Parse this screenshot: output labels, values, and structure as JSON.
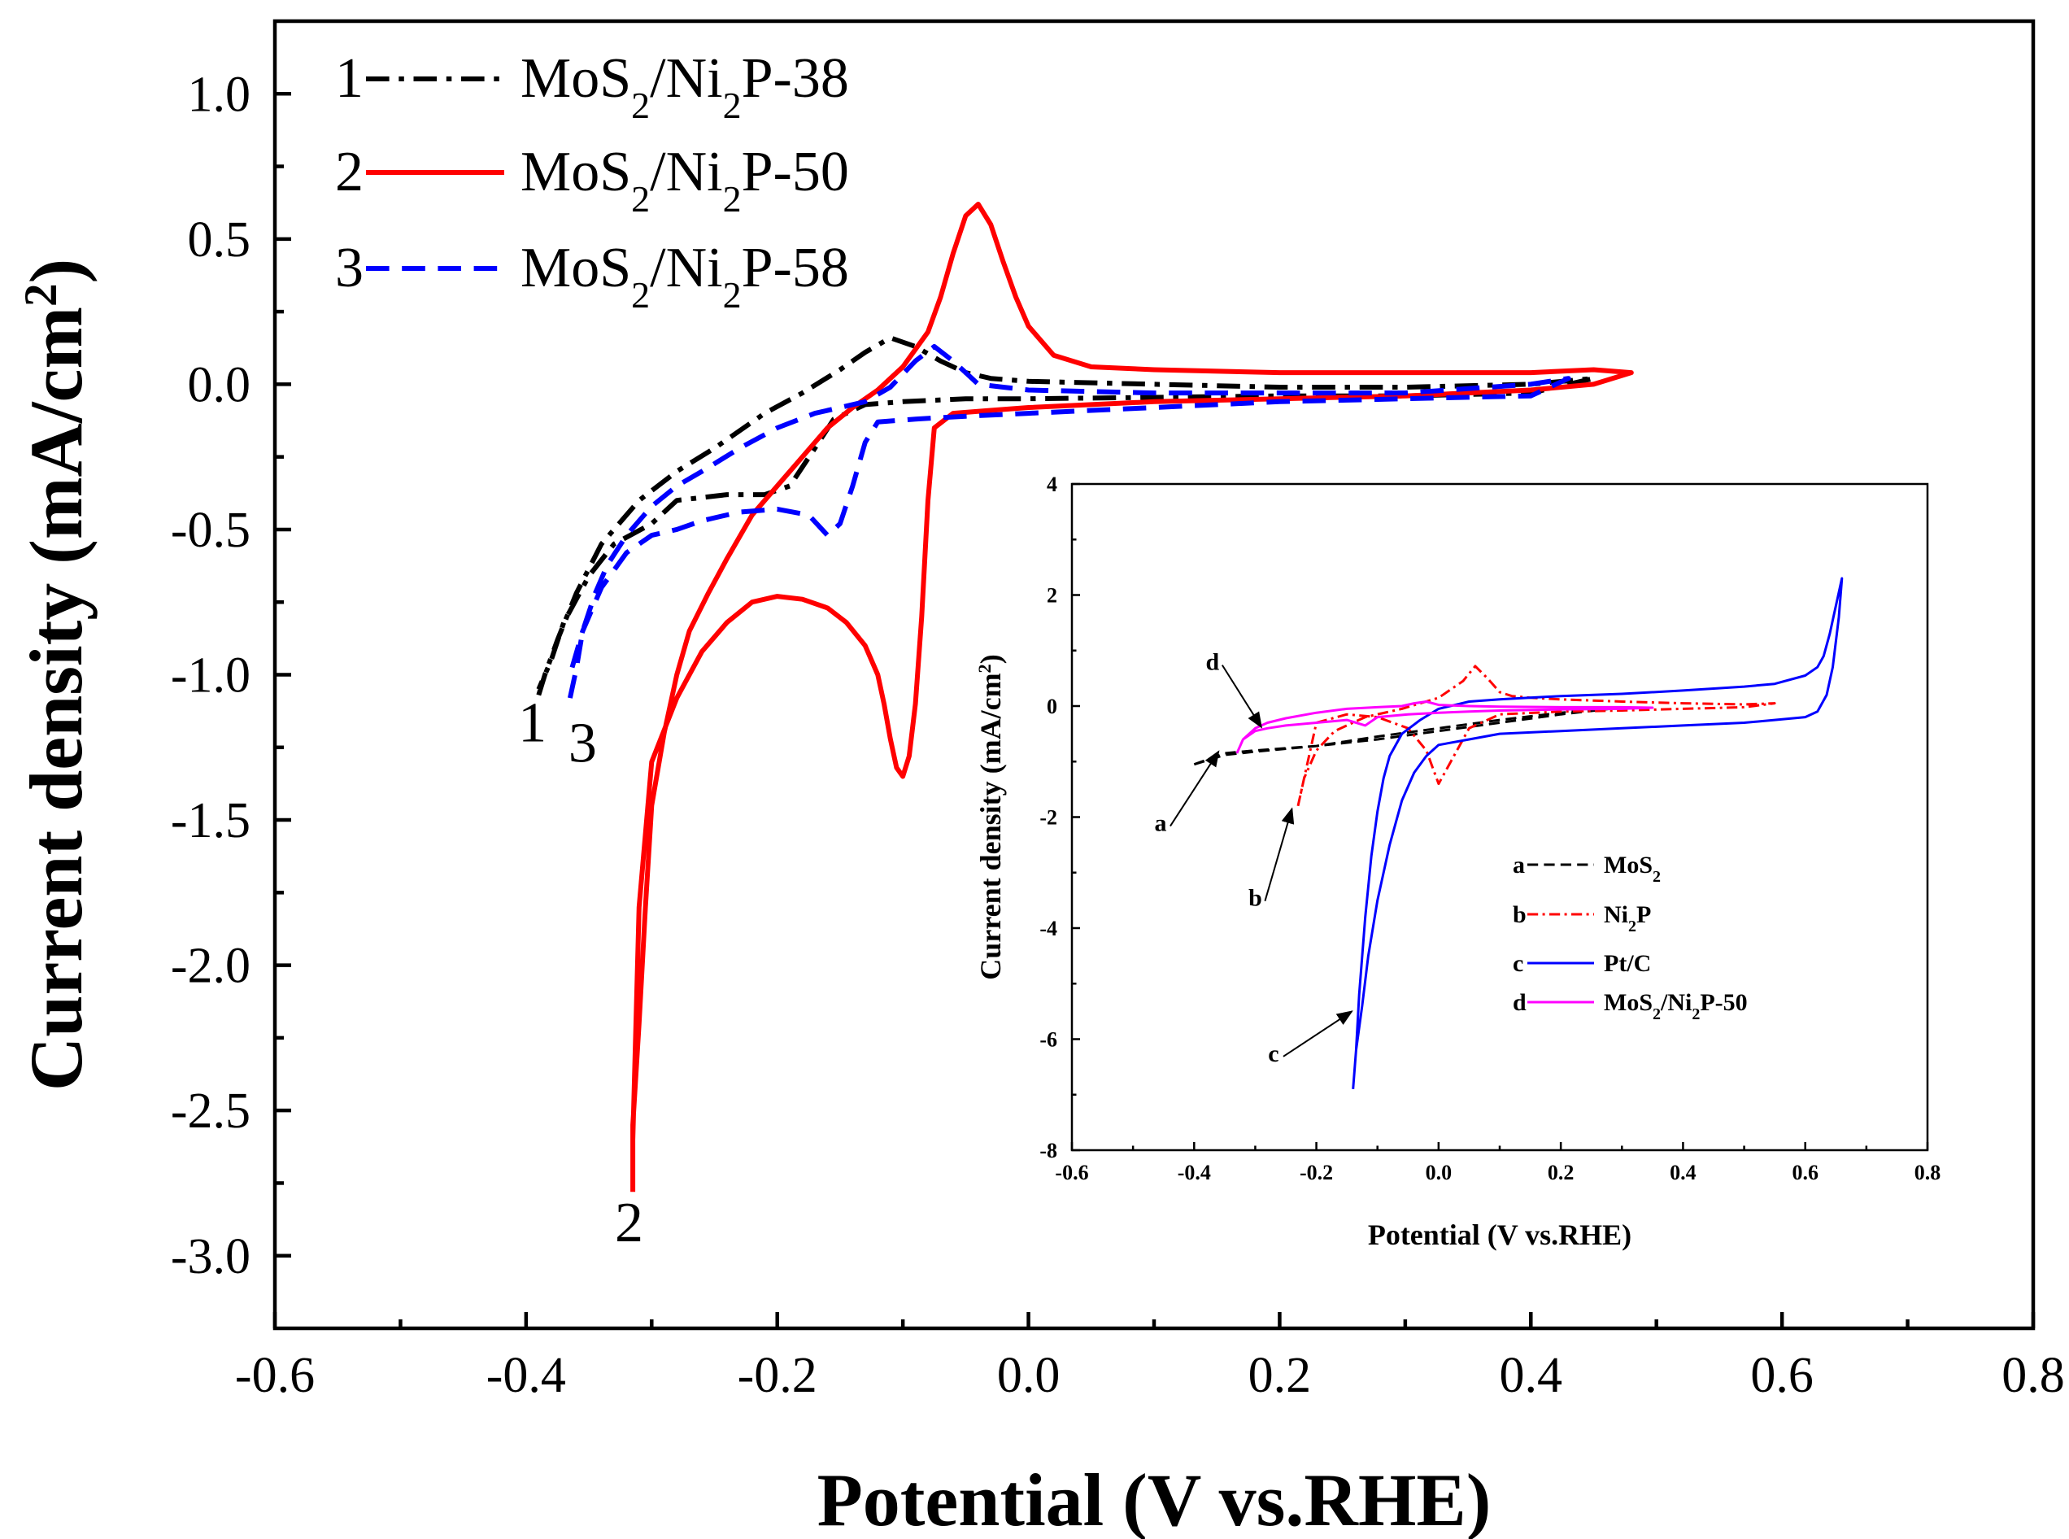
{
  "chart_data": [
    {
      "type": "line",
      "title": "",
      "xlabel": "Potential (V vs.RHE)",
      "ylabel": {
        "main": "Current density (mA/cm",
        "sup": "2",
        "end": ")"
      },
      "xlim": [
        -0.6,
        0.8
      ],
      "ylim": [
        -3.25,
        1.25
      ],
      "xticks": [
        -0.6,
        -0.4,
        -0.2,
        0.0,
        0.2,
        0.4,
        0.6,
        0.8
      ],
      "yticks": [
        1.0,
        0.5,
        0.0,
        -0.5,
        -1.0,
        -1.5,
        -2.0,
        -2.5,
        -3.0
      ],
      "xtick_labels": [
        "-0.6",
        "-0.4",
        "-0.2",
        "0.0",
        "0.2",
        "0.4",
        "0.6",
        "0.8"
      ],
      "ytick_labels": [
        "1.0",
        "0.5",
        "0.0",
        "-0.5",
        "-1.0",
        "-1.5",
        "-2.0",
        "-2.5",
        "-3.0"
      ],
      "grid": false,
      "legend_position": "top-left",
      "series": [
        {
          "id": "1",
          "num": "1",
          "label": {
            "main": "MoS",
            "s1": "2",
            "mid": "/Ni",
            "s2": "2",
            "end": "P-38"
          },
          "color": "#000000",
          "dash": "dashdot",
          "x": [
            -0.39,
            -0.385,
            -0.375,
            -0.36,
            -0.34,
            -0.31,
            -0.28,
            -0.25,
            -0.21,
            -0.18,
            -0.15,
            -0.13,
            -0.11,
            -0.09,
            -0.07,
            -0.05,
            -0.03,
            0.0,
            0.1,
            0.2,
            0.3,
            0.4,
            0.45,
            0.4,
            0.3,
            0.2,
            0.1,
            0.0,
            -0.05,
            -0.1,
            -0.13,
            -0.155,
            -0.17,
            -0.19,
            -0.21,
            -0.24,
            -0.28,
            -0.3,
            -0.33,
            -0.35,
            -0.37,
            -0.38,
            -0.39
          ],
          "y": [
            -1.07,
            -1.0,
            -0.88,
            -0.72,
            -0.55,
            -0.4,
            -0.3,
            -0.22,
            -0.1,
            -0.03,
            0.05,
            0.11,
            0.16,
            0.13,
            0.08,
            0.04,
            0.02,
            0.01,
            0.0,
            -0.01,
            -0.01,
            0.0,
            0.02,
            -0.03,
            -0.04,
            -0.04,
            -0.045,
            -0.05,
            -0.05,
            -0.06,
            -0.07,
            -0.12,
            -0.22,
            -0.35,
            -0.38,
            -0.38,
            -0.4,
            -0.48,
            -0.55,
            -0.66,
            -0.82,
            -0.95,
            -1.05
          ]
        },
        {
          "id": "2",
          "num": "2",
          "label": {
            "main": "MoS",
            "s1": "2",
            "mid": "/Ni",
            "s2": "2",
            "end": "P-50"
          },
          "color": "#ff0000",
          "dash": "solid",
          "x": [
            -0.315,
            -0.315,
            -0.31,
            -0.305,
            -0.3,
            -0.29,
            -0.28,
            -0.27,
            -0.255,
            -0.24,
            -0.22,
            -0.2,
            -0.18,
            -0.16,
            -0.14,
            -0.12,
            -0.1,
            -0.08,
            -0.07,
            -0.06,
            -0.05,
            -0.04,
            -0.03,
            -0.02,
            -0.01,
            0.0,
            0.02,
            0.05,
            0.1,
            0.2,
            0.3,
            0.4,
            0.45,
            0.48,
            0.45,
            0.4,
            0.3,
            0.2,
            0.1,
            0.0,
            -0.03,
            -0.06,
            -0.075,
            -0.08,
            -0.085,
            -0.09,
            -0.095,
            -0.1,
            -0.105,
            -0.11,
            -0.115,
            -0.12,
            -0.13,
            -0.145,
            -0.16,
            -0.18,
            -0.2,
            -0.22,
            -0.24,
            -0.26,
            -0.28,
            -0.3,
            -0.31,
            -0.315
          ],
          "y": [
            -2.78,
            -2.55,
            -2.2,
            -1.8,
            -1.45,
            -1.2,
            -1.0,
            -0.85,
            -0.72,
            -0.6,
            -0.45,
            -0.35,
            -0.25,
            -0.15,
            -0.08,
            -0.02,
            0.06,
            0.18,
            0.3,
            0.45,
            0.58,
            0.62,
            0.55,
            0.42,
            0.3,
            0.2,
            0.1,
            0.06,
            0.05,
            0.04,
            0.04,
            0.04,
            0.05,
            0.04,
            0.0,
            -0.02,
            -0.04,
            -0.05,
            -0.06,
            -0.08,
            -0.09,
            -0.1,
            -0.15,
            -0.4,
            -0.8,
            -1.1,
            -1.28,
            -1.35,
            -1.32,
            -1.22,
            -1.1,
            -1.0,
            -0.9,
            -0.82,
            -0.77,
            -0.74,
            -0.73,
            -0.75,
            -0.82,
            -0.92,
            -1.08,
            -1.3,
            -1.8,
            -2.6
          ]
        },
        {
          "id": "3",
          "num": "3",
          "label": {
            "main": "MoS",
            "s1": "2",
            "mid": "/Ni",
            "s2": "2",
            "end": "P-58"
          },
          "color": "#0000ff",
          "dash": "dashed",
          "x": [
            -0.365,
            -0.36,
            -0.355,
            -0.345,
            -0.335,
            -0.32,
            -0.3,
            -0.28,
            -0.26,
            -0.23,
            -0.2,
            -0.17,
            -0.15,
            -0.13,
            -0.11,
            -0.09,
            -0.075,
            -0.06,
            -0.05,
            -0.04,
            -0.02,
            0.0,
            0.1,
            0.2,
            0.3,
            0.4,
            0.43,
            0.4,
            0.3,
            0.2,
            0.1,
            0.0,
            -0.05,
            -0.09,
            -0.12,
            -0.13,
            -0.14,
            -0.15,
            -0.16,
            -0.175,
            -0.2,
            -0.23,
            -0.26,
            -0.28,
            -0.3,
            -0.32,
            -0.34,
            -0.355,
            -0.365
          ],
          "y": [
            -1.08,
            -0.98,
            -0.85,
            -0.72,
            -0.62,
            -0.52,
            -0.42,
            -0.35,
            -0.3,
            -0.22,
            -0.15,
            -0.1,
            -0.08,
            -0.06,
            -0.01,
            0.08,
            0.13,
            0.08,
            0.04,
            0.0,
            -0.01,
            -0.02,
            -0.03,
            -0.03,
            -0.03,
            0.0,
            0.02,
            -0.04,
            -0.05,
            -0.06,
            -0.08,
            -0.1,
            -0.11,
            -0.12,
            -0.13,
            -0.2,
            -0.35,
            -0.48,
            -0.52,
            -0.45,
            -0.43,
            -0.44,
            -0.47,
            -0.5,
            -0.52,
            -0.58,
            -0.7,
            -0.85,
            -1.0
          ]
        }
      ],
      "annotations": [
        {
          "text": "1",
          "x": -0.395,
          "y": -1.23
        },
        {
          "text": "3",
          "x": -0.355,
          "y": -1.3
        },
        {
          "text": "2",
          "x": -0.318,
          "y": -2.95
        }
      ]
    },
    {
      "type": "line",
      "title": "",
      "xlabel": "Potential (V vs.RHE)",
      "ylabel": {
        "main": "Current density (mA/cm",
        "sup": "2",
        "end": ")"
      },
      "xlim": [
        -0.6,
        0.8
      ],
      "ylim": [
        -8,
        4
      ],
      "xticks": [
        -0.6,
        -0.4,
        -0.2,
        0.0,
        0.2,
        0.4,
        0.6,
        0.8
      ],
      "yticks": [
        4,
        2,
        0,
        -2,
        -4,
        -6,
        -8
      ],
      "xtick_labels": [
        "-0.6",
        "-0.4",
        "-0.2",
        "0.0",
        "0.2",
        "0.4",
        "0.6",
        "0.8"
      ],
      "ytick_labels": [
        "4",
        "2",
        "0",
        "-2",
        "-4",
        "-6",
        "-8"
      ],
      "grid": false,
      "legend_position": "bottom-right",
      "series": [
        {
          "id": "a",
          "letter": "a",
          "label": {
            "main": "MoS",
            "s1": "2",
            "mid": "",
            "s2": "",
            "end": ""
          },
          "color": "#000000",
          "dash": "dashed",
          "x": [
            -0.4,
            -0.35,
            -0.3,
            -0.2,
            -0.1,
            0.0,
            0.1,
            0.2,
            0.28,
            0.2,
            0.1,
            0.0,
            -0.1,
            -0.2,
            -0.3,
            -0.35,
            -0.4
          ],
          "y": [
            -1.05,
            -0.88,
            -0.82,
            -0.72,
            -0.55,
            -0.4,
            -0.25,
            -0.12,
            -0.05,
            -0.15,
            -0.3,
            -0.45,
            -0.6,
            -0.72,
            -0.8,
            -0.85,
            -1.05
          ]
        },
        {
          "id": "b",
          "letter": "b",
          "label": {
            "main": "Ni",
            "s1": "2",
            "mid": "P",
            "s2": "",
            "end": ""
          },
          "color": "#ff0000",
          "dash": "dashdot",
          "x": [
            -0.23,
            -0.22,
            -0.2,
            -0.17,
            -0.12,
            -0.06,
            0.0,
            0.04,
            0.06,
            0.08,
            0.1,
            0.12,
            0.15,
            0.2,
            0.3,
            0.4,
            0.5,
            0.55,
            0.5,
            0.4,
            0.3,
            0.2,
            0.1,
            0.05,
            0.02,
            0.0,
            -0.02,
            -0.05,
            -0.1,
            -0.15,
            -0.2,
            -0.23
          ],
          "y": [
            -1.8,
            -1.3,
            -0.8,
            -0.45,
            -0.2,
            -0.05,
            0.15,
            0.45,
            0.72,
            0.5,
            0.25,
            0.18,
            0.15,
            0.12,
            0.08,
            0.05,
            0.03,
            0.05,
            -0.02,
            -0.05,
            -0.08,
            -0.1,
            -0.15,
            -0.4,
            -1.0,
            -1.4,
            -0.8,
            -0.4,
            -0.2,
            -0.15,
            -0.3,
            -1.8
          ]
        },
        {
          "id": "c",
          "letter": "c",
          "label": {
            "main": "Pt/C",
            "s1": "",
            "mid": "",
            "s2": "",
            "end": ""
          },
          "color": "#0000ff",
          "dash": "solid",
          "x": [
            -0.14,
            -0.135,
            -0.13,
            -0.12,
            -0.11,
            -0.1,
            -0.09,
            -0.08,
            -0.06,
            -0.03,
            0.0,
            0.05,
            0.1,
            0.2,
            0.3,
            0.4,
            0.5,
            0.55,
            0.6,
            0.62,
            0.63,
            0.64,
            0.65,
            0.66,
            0.655,
            0.645,
            0.635,
            0.62,
            0.6,
            0.55,
            0.5,
            0.4,
            0.3,
            0.2,
            0.1,
            0.05,
            0.0,
            -0.02,
            -0.04,
            -0.06,
            -0.08,
            -0.1,
            -0.115,
            -0.125,
            -0.135,
            -0.14
          ],
          "y": [
            -6.9,
            -6.2,
            -5.2,
            -3.8,
            -2.7,
            -1.9,
            -1.3,
            -0.9,
            -0.5,
            -0.25,
            -0.05,
            0.08,
            0.12,
            0.18,
            0.22,
            0.28,
            0.35,
            0.4,
            0.55,
            0.7,
            0.9,
            1.3,
            1.8,
            2.3,
            1.6,
            0.7,
            0.2,
            -0.1,
            -0.2,
            -0.25,
            -0.3,
            -0.35,
            -0.4,
            -0.45,
            -0.5,
            -0.6,
            -0.7,
            -0.9,
            -1.2,
            -1.7,
            -2.5,
            -3.5,
            -4.5,
            -5.4,
            -6.2,
            -6.9
          ]
        },
        {
          "id": "d",
          "letter": "d",
          "label": {
            "main": "MoS",
            "s1": "2",
            "mid": "/Ni",
            "s2": "2",
            "end": "P-50"
          },
          "color": "#ff00ff",
          "dash": "solid",
          "x": [
            -0.33,
            -0.32,
            -0.3,
            -0.28,
            -0.25,
            -0.2,
            -0.15,
            -0.1,
            -0.06,
            -0.04,
            -0.02,
            0.0,
            0.05,
            0.1,
            0.2,
            0.3,
            0.35,
            0.3,
            0.2,
            0.1,
            0.05,
            0.0,
            -0.05,
            -0.1,
            -0.12,
            -0.15,
            -0.2,
            -0.25,
            -0.28,
            -0.3,
            -0.32,
            -0.33
          ],
          "y": [
            -0.85,
            -0.6,
            -0.4,
            -0.3,
            -0.22,
            -0.12,
            -0.05,
            -0.02,
            0.0,
            0.05,
            0.08,
            0.02,
            0.0,
            -0.01,
            -0.02,
            -0.02,
            -0.03,
            -0.05,
            -0.06,
            -0.08,
            -0.1,
            -0.12,
            -0.15,
            -0.2,
            -0.35,
            -0.25,
            -0.3,
            -0.35,
            -0.4,
            -0.45,
            -0.6,
            -0.85
          ]
        }
      ],
      "annotations": [
        {
          "text": "d",
          "x": -0.37,
          "y": 0.65
        },
        {
          "text": "a",
          "x": -0.455,
          "y": -2.25
        },
        {
          "text": "b",
          "x": -0.3,
          "y": -3.6
        },
        {
          "text": "c",
          "x": -0.27,
          "y": -6.4
        }
      ]
    }
  ]
}
